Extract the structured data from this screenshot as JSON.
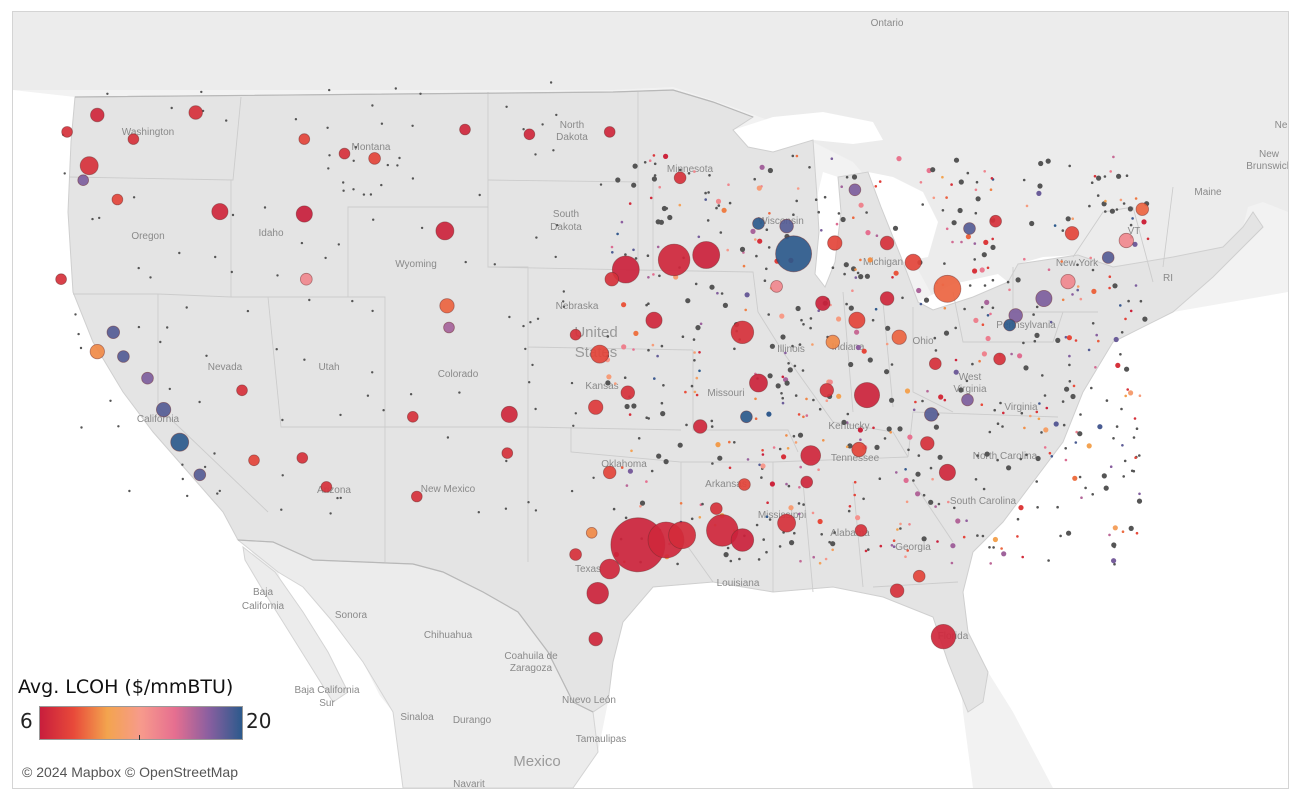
{
  "legend": {
    "title": "Avg. LCOH ($/mmBTU)",
    "min": "6",
    "max": "20",
    "gradient": [
      "#c81e3c",
      "#e84a3a",
      "#f3a44e",
      "#f79a8c",
      "#e66f90",
      "#8b5fa0",
      "#2c5a8c"
    ]
  },
  "attribution": "© 2024 Mapbox © OpenStreetMap",
  "labels": {
    "ontario": "Ontario",
    "washington": "Washington",
    "montana": "Montana",
    "north_dakota_1": "North",
    "north_dakota_2": "Dakota",
    "minnesota": "Minnesota",
    "oregon": "Oregon",
    "idaho": "Idaho",
    "south_dakota_1": "South",
    "south_dakota_2": "Dakota",
    "wisconsin": "Wisconsin",
    "michigan": "Michigan",
    "wyoming": "Wyoming",
    "new_york": "New York",
    "vt": "VT",
    "maine": "Maine",
    "new_brunswick_1": "New",
    "new_brunswick_2": "Brunswick",
    "nebraska": "Nebraska",
    "united_states_1": "United",
    "united_states_2": "States",
    "nevada": "Nevada",
    "utah": "Utah",
    "colorado": "Colorado",
    "illinois": "Illinois",
    "indiana": "Indiana",
    "ohio": "Ohio",
    "pennsylvania": "Pennsylvania",
    "kansas": "Kansas",
    "missouri": "Missouri",
    "west_virginia_1": "West",
    "west_virginia_2": "Virginia",
    "virginia": "Virginia",
    "california": "California",
    "kentucky": "Kentucky",
    "tennessee": "Tennessee",
    "oklahoma": "Oklahoma",
    "arkansas": "Arkansas",
    "north_carolina": "North Carolina",
    "arizona": "Arizona",
    "new_mexico": "New Mexico",
    "mississippi": "Mississippi",
    "alabama": "Alabama",
    "georgia": "Georgia",
    "south_carolina": "South Carolina",
    "texas": "Texas",
    "louisiana": "Louisiana",
    "florida": "Florida",
    "baja_california_1": "Baja",
    "baja_california_2": "California",
    "sonora": "Sonora",
    "chihuahua": "Chihuahua",
    "coahuila_1": "Coahuila de",
    "coahuila_2": "Zaragoza",
    "bcs_1": "Baja California",
    "bcs_2": "Sur",
    "nuevo_leon": "Nuevo León",
    "sinaloa": "Sinaloa",
    "durango": "Durango",
    "tamaulipas": "Tamaulipas",
    "mexico": "Mexico",
    "navarit": "Navarit",
    "ri": "RI",
    "ne": "Ne"
  },
  "sites": [
    {
      "x": -122.3,
      "y": 47.6,
      "v": 6.5,
      "s": 1.5
    },
    {
      "x": -122.7,
      "y": 45.5,
      "v": 7,
      "s": 2
    },
    {
      "x": -123.0,
      "y": 44.9,
      "v": 18,
      "s": 1.2
    },
    {
      "x": -121.3,
      "y": 44.1,
      "v": 8,
      "s": 1.2
    },
    {
      "x": -117.4,
      "y": 47.7,
      "v": 7,
      "s": 1.5
    },
    {
      "x": -116.2,
      "y": 43.6,
      "v": 6.5,
      "s": 1.8
    },
    {
      "x": -112.0,
      "y": 43.5,
      "v": 6,
      "s": 1.8
    },
    {
      "x": -111.9,
      "y": 40.8,
      "v": 14,
      "s": 1.3
    },
    {
      "x": -105.0,
      "y": 42.8,
      "v": 6.3,
      "s": 2
    },
    {
      "x": -108.5,
      "y": 45.8,
      "v": 8,
      "s": 1.3
    },
    {
      "x": -121.5,
      "y": 38.6,
      "v": 19,
      "s": 1.4
    },
    {
      "x": -122.3,
      "y": 37.8,
      "v": 10,
      "s": 1.6
    },
    {
      "x": -121.0,
      "y": 37.6,
      "v": 19,
      "s": 1.3
    },
    {
      "x": -119.0,
      "y": 35.4,
      "v": 19,
      "s": 1.6
    },
    {
      "x": -118.2,
      "y": 34.05,
      "v": 20,
      "s": 2
    },
    {
      "x": -117.2,
      "y": 32.7,
      "v": 19,
      "s": 1.3
    },
    {
      "x": -104.9,
      "y": 39.7,
      "v": 9,
      "s": 1.6
    },
    {
      "x": -104.8,
      "y": 38.8,
      "v": 17,
      "s": 1.2
    },
    {
      "x": -106.6,
      "y": 35.1,
      "v": 7,
      "s": 1.2
    },
    {
      "x": -101.8,
      "y": 35.2,
      "v": 6.5,
      "s": 1.8
    },
    {
      "x": -96.0,
      "y": 41.2,
      "v": 6.2,
      "s": 3
    },
    {
      "x": -96.7,
      "y": 40.8,
      "v": 7,
      "s": 1.5
    },
    {
      "x": -97.3,
      "y": 37.7,
      "v": 8,
      "s": 2
    },
    {
      "x": -95.9,
      "y": 36.1,
      "v": 7,
      "s": 1.5
    },
    {
      "x": -97.5,
      "y": 35.5,
      "v": 7.5,
      "s": 1.6
    },
    {
      "x": -93.6,
      "y": 41.6,
      "v": 6.5,
      "s": 3.5
    },
    {
      "x": -92.0,
      "y": 41.8,
      "v": 6.2,
      "s": 3
    },
    {
      "x": -94.6,
      "y": 39.1,
      "v": 6.5,
      "s": 1.8
    },
    {
      "x": -90.2,
      "y": 38.6,
      "v": 7,
      "s": 2.5
    },
    {
      "x": -87.65,
      "y": 41.85,
      "v": 20,
      "s": 4
    },
    {
      "x": -88.0,
      "y": 43.0,
      "v": 19,
      "s": 1.5
    },
    {
      "x": -89.4,
      "y": 43.1,
      "v": 20,
      "s": 1.3
    },
    {
      "x": -86.2,
      "y": 39.8,
      "v": 6.2,
      "s": 1.6
    },
    {
      "x": -84.5,
      "y": 39.1,
      "v": 8,
      "s": 1.8
    },
    {
      "x": -83.0,
      "y": 40.0,
      "v": 6.5,
      "s": 1.5
    },
    {
      "x": -81.7,
      "y": 41.5,
      "v": 8,
      "s": 1.8
    },
    {
      "x": -80.0,
      "y": 40.4,
      "v": 9,
      "s": 3
    },
    {
      "x": -75.2,
      "y": 40.0,
      "v": 18,
      "s": 1.8
    },
    {
      "x": -74.0,
      "y": 40.7,
      "v": 14,
      "s": 1.6
    },
    {
      "x": -71.1,
      "y": 42.4,
      "v": 14,
      "s": 1.6
    },
    {
      "x": -72.0,
      "y": 41.7,
      "v": 19,
      "s": 1.3
    },
    {
      "x": -76.6,
      "y": 39.3,
      "v": 18,
      "s": 1.5
    },
    {
      "x": -77.4,
      "y": 37.5,
      "v": 7,
      "s": 1.3
    },
    {
      "x": -80.8,
      "y": 35.2,
      "v": 19,
      "s": 1.5
    },
    {
      "x": -79.0,
      "y": 35.8,
      "v": 18,
      "s": 1.3
    },
    {
      "x": -81.0,
      "y": 34.0,
      "v": 7,
      "s": 1.5
    },
    {
      "x": -80.0,
      "y": 32.8,
      "v": 6.5,
      "s": 1.8
    },
    {
      "x": -84.4,
      "y": 33.75,
      "v": 8,
      "s": 1.6
    },
    {
      "x": -86.8,
      "y": 33.5,
      "v": 6.5,
      "s": 2.2
    },
    {
      "x": -86.0,
      "y": 36.2,
      "v": 7,
      "s": 1.5
    },
    {
      "x": -84.0,
      "y": 36.0,
      "v": 6.3,
      "s": 2.8
    },
    {
      "x": -90.0,
      "y": 35.1,
      "v": 20,
      "s": 1.3
    },
    {
      "x": -92.3,
      "y": 34.7,
      "v": 6.5,
      "s": 1.5
    },
    {
      "x": -95.4,
      "y": 29.8,
      "v": 6.3,
      "s": 6
    },
    {
      "x": -94.0,
      "y": 30.0,
      "v": 6.5,
      "s": 4
    },
    {
      "x": -93.2,
      "y": 30.2,
      "v": 6.7,
      "s": 3
    },
    {
      "x": -91.2,
      "y": 30.4,
      "v": 6.5,
      "s": 3.5
    },
    {
      "x": -90.2,
      "y": 30.0,
      "v": 6.2,
      "s": 2.5
    },
    {
      "x": -88.0,
      "y": 30.7,
      "v": 7,
      "s": 2
    },
    {
      "x": -97.4,
      "y": 27.8,
      "v": 6.3,
      "s": 2.4
    },
    {
      "x": -96.8,
      "y": 28.8,
      "v": 6.5,
      "s": 2.2
    },
    {
      "x": -97.5,
      "y": 25.9,
      "v": 6.5,
      "s": 1.5
    },
    {
      "x": -80.2,
      "y": 26.0,
      "v": 6.5,
      "s": 2.7
    },
    {
      "x": -82.5,
      "y": 27.9,
      "v": 7,
      "s": 1.5
    },
    {
      "x": -81.4,
      "y": 28.5,
      "v": 8,
      "s": 1.3
    },
    {
      "x": -84.3,
      "y": 30.4,
      "v": 7,
      "s": 1.3
    },
    {
      "x": -90.1,
      "y": 32.3,
      "v": 8,
      "s": 1.3
    },
    {
      "x": -89.4,
      "y": 36.5,
      "v": 6.3,
      "s": 2
    },
    {
      "x": -85.7,
      "y": 38.2,
      "v": 10,
      "s": 1.5
    },
    {
      "x": -88.5,
      "y": 40.5,
      "v": 14,
      "s": 1.3
    },
    {
      "x": -93.3,
      "y": 45.0,
      "v": 7,
      "s": 1.3
    },
    {
      "x": -96.8,
      "y": 46.9,
      "v": 6.5,
      "s": 1.2
    },
    {
      "x": -100.8,
      "y": 46.8,
      "v": 6.5,
      "s": 1.2
    },
    {
      "x": -98.5,
      "y": 38.5,
      "v": 7,
      "s": 1.2
    },
    {
      "x": -85.6,
      "y": 42.3,
      "v": 8,
      "s": 1.6
    },
    {
      "x": -83.0,
      "y": 42.3,
      "v": 7,
      "s": 1.5
    },
    {
      "x": -84.6,
      "y": 44.5,
      "v": 18,
      "s": 1.3
    },
    {
      "x": -73.8,
      "y": 42.7,
      "v": 8,
      "s": 1.5
    },
    {
      "x": -70.3,
      "y": 43.7,
      "v": 9,
      "s": 1.4
    },
    {
      "x": -77.6,
      "y": 43.2,
      "v": 7,
      "s": 1.3
    },
    {
      "x": -78.9,
      "y": 42.9,
      "v": 19,
      "s": 1.3
    },
    {
      "x": -76.9,
      "y": 38.9,
      "v": 20,
      "s": 1.3
    },
    {
      "x": -82.4,
      "y": 38.4,
      "v": 9,
      "s": 1.6
    },
    {
      "x": -80.6,
      "y": 37.3,
      "v": 7,
      "s": 1.3
    },
    {
      "x": -87.0,
      "y": 32.4,
      "v": 6.5,
      "s": 1.3
    },
    {
      "x": -91.5,
      "y": 31.3,
      "v": 7,
      "s": 1.3
    },
    {
      "x": -98.5,
      "y": 29.4,
      "v": 7,
      "s": 1.3
    },
    {
      "x": -96.8,
      "y": 32.8,
      "v": 8,
      "s": 1.4
    },
    {
      "x": -97.7,
      "y": 30.3,
      "v": 10,
      "s": 1.2
    },
    {
      "x": -101.9,
      "y": 33.6,
      "v": 7,
      "s": 1.2
    },
    {
      "x": -106.4,
      "y": 31.8,
      "v": 7,
      "s": 1.2
    },
    {
      "x": -112.1,
      "y": 33.4,
      "v": 7,
      "s": 1.2
    },
    {
      "x": -110.9,
      "y": 32.2,
      "v": 7,
      "s": 1.2
    },
    {
      "x": -115.1,
      "y": 36.2,
      "v": 7,
      "s": 1.2
    },
    {
      "x": -114.5,
      "y": 33.3,
      "v": 8,
      "s": 1.2
    },
    {
      "x": -119.8,
      "y": 36.7,
      "v": 18,
      "s": 1.3
    },
    {
      "x": -123.8,
      "y": 46.9,
      "v": 7,
      "s": 1.2
    },
    {
      "x": -124.1,
      "y": 40.8,
      "v": 7,
      "s": 1.2
    },
    {
      "x": -120.5,
      "y": 46.6,
      "v": 7,
      "s": 1.2
    },
    {
      "x": -110.0,
      "y": 46.0,
      "v": 7,
      "s": 1.2
    },
    {
      "x": -112.0,
      "y": 46.6,
      "v": 8,
      "s": 1.2
    },
    {
      "x": -104.0,
      "y": 47.0,
      "v": 6.5,
      "s": 1.2
    }
  ]
}
